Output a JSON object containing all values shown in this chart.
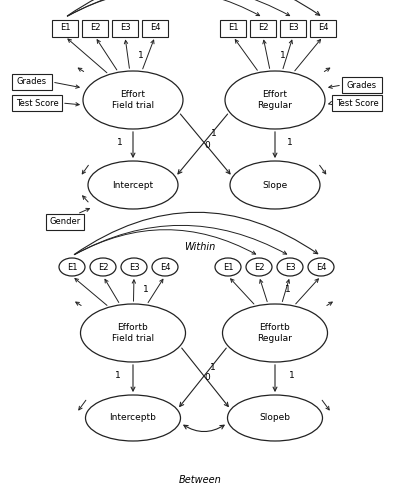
{
  "bg_color": "#ffffff",
  "line_color": "#222222",
  "within_label": "Within",
  "between_label": "Between",
  "within": {
    "items_ft": [
      "E1",
      "E2",
      "E3",
      "E4"
    ],
    "items_rt": [
      "E1",
      "E2",
      "E3",
      "E4"
    ],
    "effort_ft_label": "Effort\nField trial",
    "effort_rt_label": "Effort\nRegular",
    "intercept_label": "Intercept",
    "slope_label": "Slope",
    "grades_l_label": "Grades",
    "grades_r_label": "Grades",
    "test_l_label": "Test Score",
    "test_r_label": "Test Score",
    "gender_label": "Gender"
  },
  "between": {
    "items_ft": [
      "E1",
      "E2",
      "E3",
      "E4"
    ],
    "items_rt": [
      "E1",
      "E2",
      "E3",
      "E4"
    ],
    "effort_ft_label": "Effortb\nField trial",
    "effort_rt_label": "Effortb\nRegular",
    "intercept_label": "Interceptb",
    "slope_label": "Slopeb"
  }
}
